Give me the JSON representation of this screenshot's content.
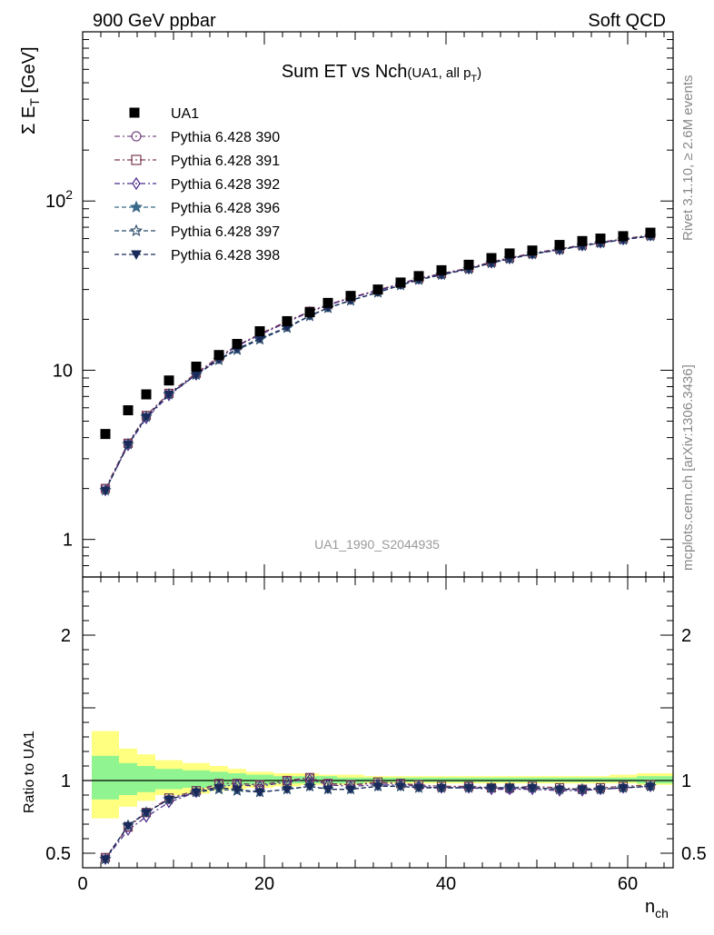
{
  "header": {
    "left": "900 GeV ppbar",
    "right": "Soft QCD"
  },
  "side_labels": {
    "rivet": "Rivet 3.1.10, ≥ 2.6M events",
    "mcplots": "mcplots.cern.ch [arXiv:1306.3436]"
  },
  "chart_data": {
    "type": "scatter",
    "title_main": "Sum ET vs Nch",
    "title_sub": "(UA1, all p",
    "title_sub_index": "T",
    "title_sub_close": ")",
    "watermark": "UA1_1990_S2044935",
    "ylabel_main": "Σ E",
    "ylabel_sub": "T",
    "ylabel_unit": " [GeV]",
    "ratio_ylabel": "Ratio to UA1",
    "xlabel_main": "n",
    "xlabel_sub": "ch",
    "xlim": [
      0,
      65
    ],
    "ylim_main": [
      0.6,
      1000
    ],
    "ylog": true,
    "ylim_ratio": [
      0.4,
      2.4
    ],
    "main_yticks": [
      {
        "v": 1,
        "label": "1"
      },
      {
        "v": 10,
        "label": "10"
      },
      {
        "v": 100,
        "label": "10",
        "sup": "2"
      }
    ],
    "ratio_yticks": [
      {
        "v": 0.5,
        "label": "0.5"
      },
      {
        "v": 1,
        "label": "1"
      },
      {
        "v": 2,
        "label": "2"
      }
    ],
    "xticks": [
      0,
      20,
      40,
      60
    ],
    "x": [
      2.5,
      5,
      7,
      9.5,
      12.5,
      15,
      17,
      19.5,
      22.5,
      25,
      27,
      29.5,
      32.5,
      35,
      37,
      39.5,
      42.5,
      45,
      47,
      49.5,
      52.5,
      55,
      57,
      59.5,
      62.5
    ],
    "data_series": {
      "name": "UA1",
      "values": [
        4.2,
        5.8,
        7.2,
        8.7,
        10.5,
        12.3,
        14.3,
        17,
        19.5,
        22,
        25,
        27.5,
        30,
        33,
        36,
        39,
        42,
        46,
        49,
        51,
        55,
        58,
        60,
        62,
        65
      ]
    },
    "mc_series": [
      {
        "name": "Pythia 6.428 390",
        "color": "#7a4a88",
        "marker": "circle-open",
        "dash": "6,3,2,3",
        "values": [
          2.0,
          3.7,
          5.4,
          7.3,
          9.5,
          12.0,
          14.0,
          16.3,
          19.4,
          22.3,
          24.3,
          26.8,
          29.7,
          32.5,
          34.8,
          37.2,
          40.0,
          43.5,
          46.0,
          49.0,
          52.0,
          55.0,
          57.0,
          59.5,
          63.0
        ]
      },
      {
        "name": "Pythia 6.428 391",
        "color": "#7a3a52",
        "marker": "square-open",
        "dash": "6,3,2,3",
        "values": [
          2.0,
          3.7,
          5.4,
          7.3,
          9.6,
          12.0,
          14.0,
          16.4,
          19.5,
          22.3,
          24.4,
          26.9,
          29.8,
          32.6,
          34.9,
          37.3,
          40.2,
          43.7,
          46.2,
          49.2,
          52.2,
          55.0,
          57.2,
          59.7,
          63.0
        ]
      },
      {
        "name": "Pythia 6.428 392",
        "color": "#4a2a8a",
        "marker": "diamond-open",
        "dash": "6,3,2,3",
        "values": [
          1.95,
          3.6,
          5.2,
          7.1,
          9.4,
          11.8,
          13.9,
          16.2,
          19.2,
          22.1,
          24.2,
          26.7,
          29.5,
          32.3,
          34.7,
          37.0,
          39.8,
          43.2,
          45.7,
          48.7,
          51.7,
          54.5,
          56.7,
          59.2,
          62.5
        ]
      },
      {
        "name": "Pythia 6.428 396",
        "color": "#3a6a8a",
        "marker": "star-solid",
        "dash": "5,3",
        "values": [
          1.95,
          3.65,
          5.3,
          7.2,
          9.4,
          11.5,
          13.2,
          15.2,
          17.8,
          20.9,
          23.3,
          25.8,
          28.8,
          31.8,
          34.2,
          36.6,
          39.6,
          43.0,
          45.5,
          48.5,
          51.5,
          54.3,
          56.5,
          59.0,
          62.0
        ]
      },
      {
        "name": "Pythia 6.428 397",
        "color": "#2a4a6a",
        "marker": "star-open",
        "dash": "5,3",
        "values": [
          1.95,
          3.65,
          5.3,
          7.2,
          9.4,
          11.5,
          13.2,
          15.2,
          17.8,
          20.9,
          23.3,
          25.8,
          28.8,
          31.8,
          34.2,
          36.6,
          39.6,
          43.0,
          45.5,
          48.5,
          51.5,
          54.3,
          56.5,
          59.0,
          62.0
        ]
      },
      {
        "name": "Pythia 6.428 398",
        "color": "#1a2a5a",
        "marker": "triangle-down",
        "dash": "5,3",
        "values": [
          1.95,
          3.65,
          5.3,
          7.2,
          9.4,
          11.6,
          13.4,
          15.4,
          18.0,
          21.0,
          23.4,
          25.9,
          28.9,
          31.9,
          34.3,
          36.7,
          39.7,
          43.1,
          45.6,
          48.6,
          51.6,
          54.4,
          56.6,
          59.1,
          62.1
        ]
      }
    ],
    "ratio_band": {
      "x_edges": [
        1,
        4,
        6,
        8,
        11,
        14,
        16,
        18,
        21,
        24,
        26,
        28,
        31,
        34,
        36,
        38,
        41,
        44,
        46,
        48,
        51,
        54,
        56,
        58,
        61,
        65
      ],
      "yellow_lo": [
        0.74,
        0.82,
        0.86,
        0.9,
        0.91,
        0.93,
        0.94,
        0.95,
        0.96,
        0.97,
        0.97,
        0.97,
        0.98,
        0.98,
        0.98,
        0.98,
        0.98,
        0.98,
        0.98,
        0.98,
        0.98,
        0.98,
        0.98,
        0.98,
        0.97
      ],
      "yellow_hi": [
        1.34,
        1.22,
        1.18,
        1.14,
        1.12,
        1.1,
        1.08,
        1.06,
        1.05,
        1.05,
        1.04,
        1.04,
        1.03,
        1.03,
        1.03,
        1.03,
        1.03,
        1.03,
        1.03,
        1.03,
        1.03,
        1.03,
        1.03,
        1.04,
        1.05
      ],
      "green_lo": [
        0.87,
        0.9,
        0.92,
        0.94,
        0.95,
        0.96,
        0.97,
        0.97,
        0.98,
        0.98,
        0.98,
        0.98,
        0.99,
        0.99,
        0.99,
        0.99,
        0.99,
        0.99,
        0.99,
        0.99,
        0.99,
        0.99,
        0.99,
        0.99,
        0.98
      ],
      "green_hi": [
        1.17,
        1.12,
        1.1,
        1.08,
        1.07,
        1.06,
        1.05,
        1.04,
        1.03,
        1.03,
        1.03,
        1.02,
        1.02,
        1.02,
        1.02,
        1.02,
        1.02,
        1.02,
        1.02,
        1.02,
        1.02,
        1.02,
        1.02,
        1.02,
        1.03
      ]
    },
    "ratio_values": [
      [
        0.47,
        0.68,
        0.78,
        0.87,
        0.92,
        0.98,
        0.98,
        0.97,
        1.0,
        1.02,
        0.98,
        0.97,
        0.98,
        0.98,
        0.96,
        0.95,
        0.96,
        0.95,
        0.94,
        0.95,
        0.94,
        0.94,
        0.94,
        0.95,
        0.96
      ],
      [
        0.47,
        0.68,
        0.78,
        0.88,
        0.93,
        0.98,
        0.98,
        0.97,
        1.0,
        1.02,
        0.98,
        0.97,
        0.99,
        0.98,
        0.97,
        0.96,
        0.96,
        0.95,
        0.95,
        0.96,
        0.95,
        0.94,
        0.95,
        0.96,
        0.97
      ],
      [
        0.46,
        0.66,
        0.75,
        0.85,
        0.92,
        0.96,
        0.97,
        0.96,
        0.99,
        1.01,
        0.97,
        0.96,
        0.97,
        0.97,
        0.96,
        0.95,
        0.95,
        0.94,
        0.94,
        0.94,
        0.93,
        0.93,
        0.94,
        0.95,
        0.96
      ],
      [
        0.46,
        0.69,
        0.78,
        0.87,
        0.92,
        0.94,
        0.93,
        0.92,
        0.94,
        0.96,
        0.94,
        0.94,
        0.96,
        0.96,
        0.95,
        0.95,
        0.95,
        0.95,
        0.95,
        0.95,
        0.94,
        0.94,
        0.94,
        0.95,
        0.96
      ],
      [
        0.46,
        0.69,
        0.78,
        0.87,
        0.92,
        0.94,
        0.93,
        0.92,
        0.94,
        0.96,
        0.94,
        0.94,
        0.96,
        0.96,
        0.95,
        0.95,
        0.95,
        0.95,
        0.95,
        0.95,
        0.94,
        0.94,
        0.94,
        0.95,
        0.96
      ],
      [
        0.46,
        0.69,
        0.78,
        0.87,
        0.92,
        0.95,
        0.94,
        0.92,
        0.94,
        0.96,
        0.94,
        0.94,
        0.96,
        0.96,
        0.95,
        0.95,
        0.95,
        0.95,
        0.95,
        0.95,
        0.94,
        0.94,
        0.94,
        0.95,
        0.96
      ]
    ]
  }
}
